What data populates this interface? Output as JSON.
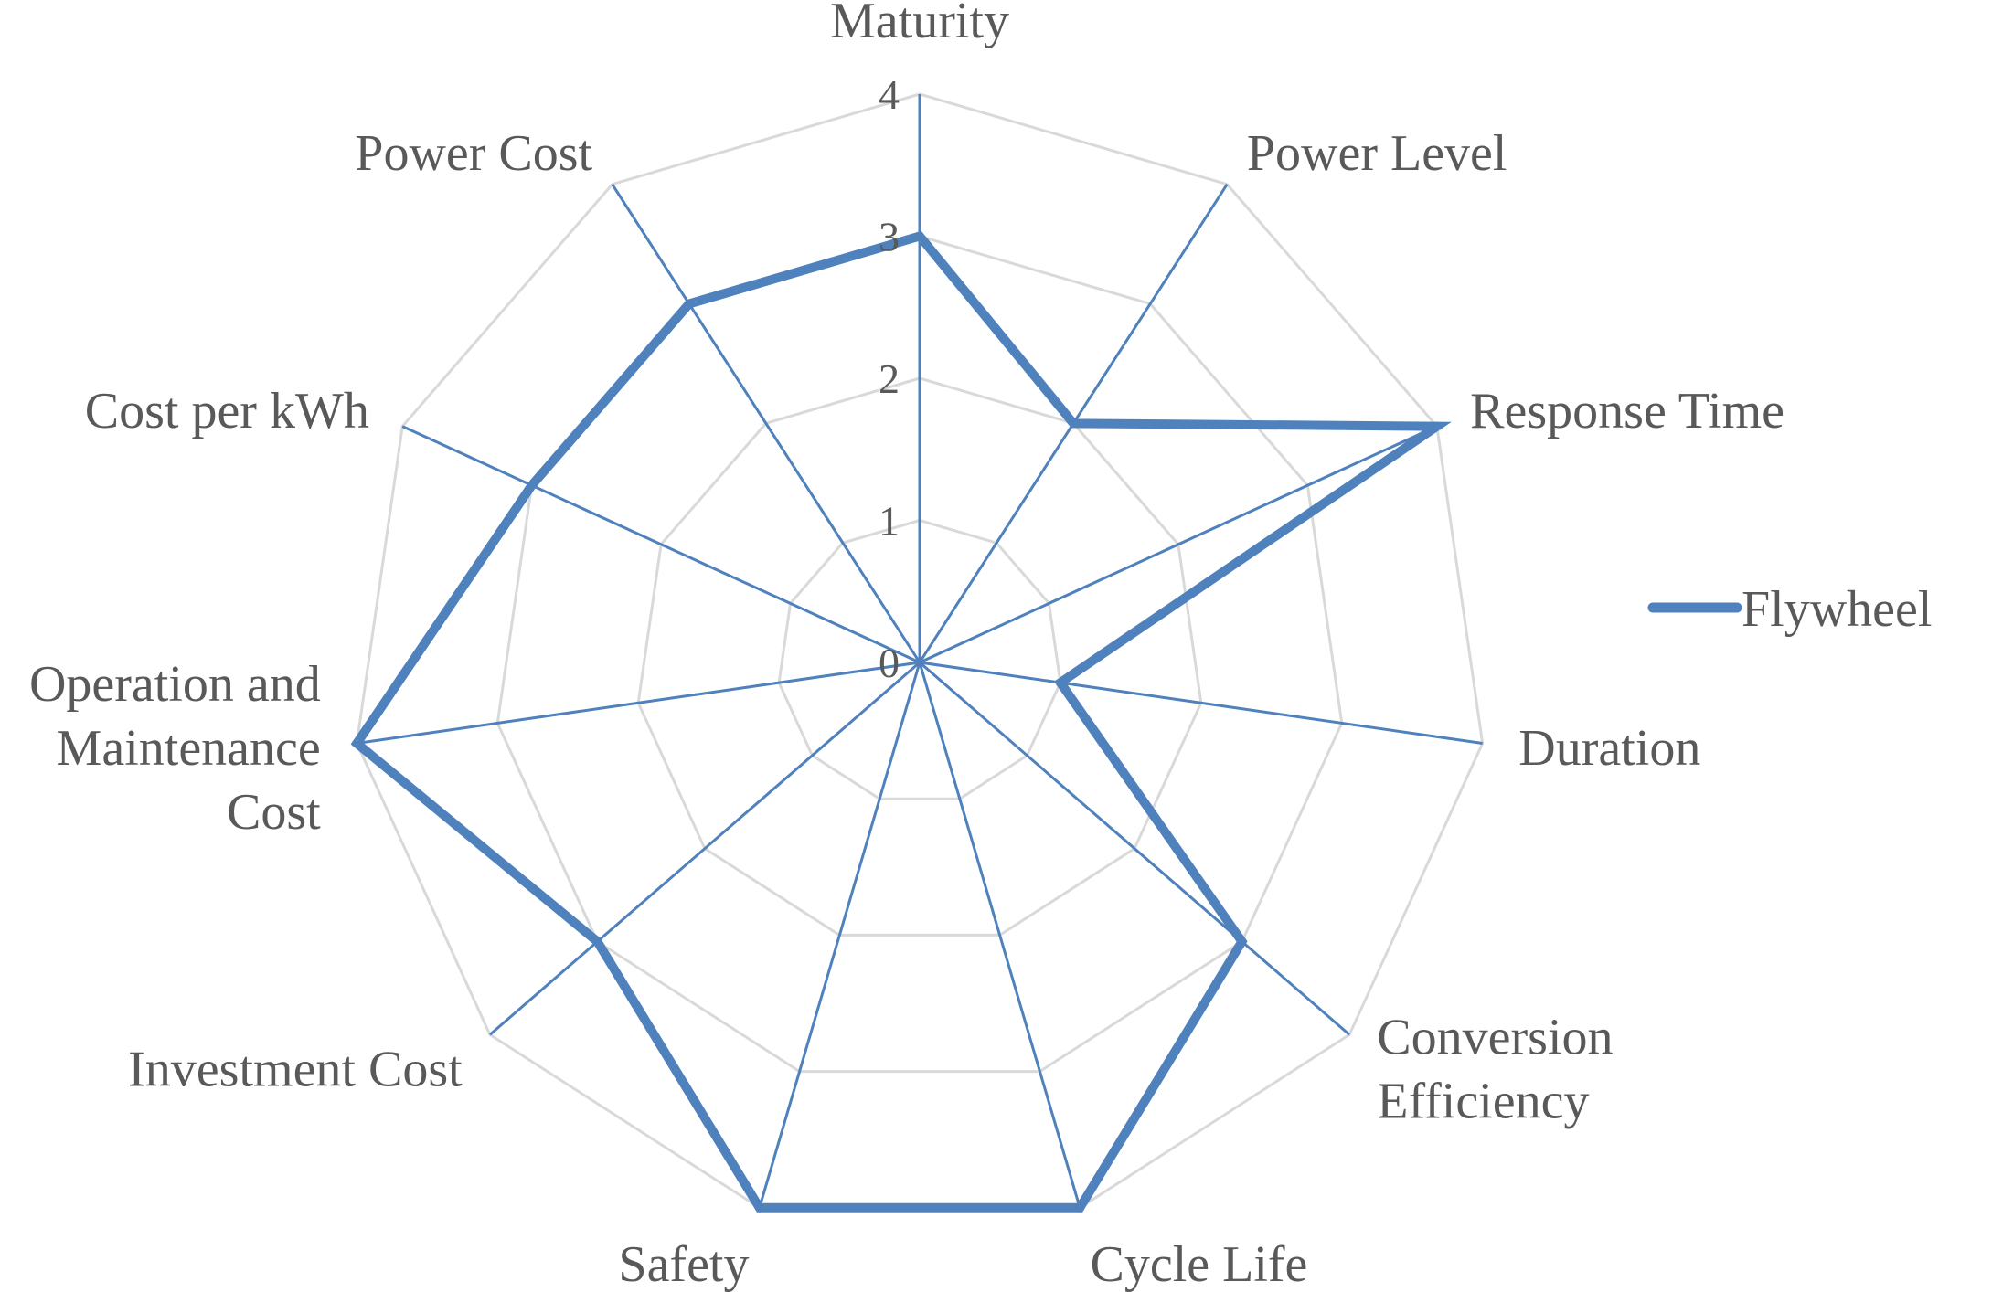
{
  "chart_data": {
    "type": "radar",
    "categories": [
      "Maturity",
      "Power Level",
      "Response Time",
      "Duration",
      "Conversion Efficiency",
      "Cycle Life",
      "Safety",
      "Investment Cost",
      "Operation and Maintenance Cost",
      "Cost per kWh",
      "Power Cost"
    ],
    "category_label_lines": [
      [
        "Maturity"
      ],
      [
        "Power Level"
      ],
      [
        "Response Time"
      ],
      [
        "Duration"
      ],
      [
        "Conversion",
        "Efficiency"
      ],
      [
        "Cycle Life"
      ],
      [
        "Safety"
      ],
      [
        "Investment Cost"
      ],
      [
        "Operation and",
        "Maintenance",
        "Cost"
      ],
      [
        "Cost per kWh"
      ],
      [
        "Power Cost"
      ]
    ],
    "series": [
      {
        "name": "Flywheel",
        "values": [
          3,
          2,
          4,
          1,
          3,
          4,
          4,
          3,
          4,
          3,
          3
        ],
        "color": "#4f81bd"
      }
    ],
    "r_ticks": [
      0,
      1,
      2,
      3,
      4
    ],
    "rlim": [
      0,
      4
    ],
    "grid": true,
    "legend": "right",
    "colors": {
      "series": "#4f81bd",
      "grid": "#d9d9d9",
      "text": "#595959"
    }
  }
}
